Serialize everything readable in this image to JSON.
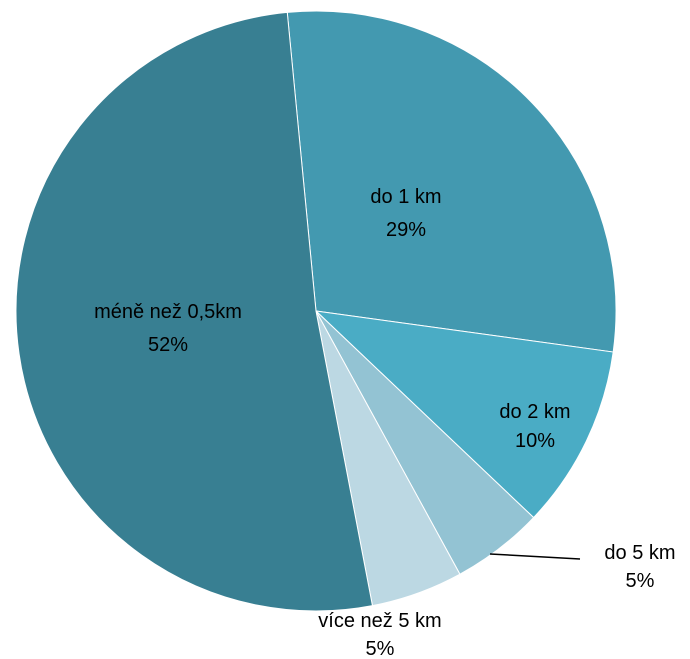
{
  "chart_data": {
    "type": "pie",
    "title": "",
    "legend": "none",
    "slices": [
      {
        "label": "do 1 km",
        "value": 29,
        "value_label": "29%",
        "color": "#4399B0"
      },
      {
        "label": "do 2 km",
        "value": 10,
        "value_label": "10%",
        "color": "#4AACC5"
      },
      {
        "label": "do 5 km",
        "value": 5,
        "value_label": "5%",
        "color": "#93C3D3"
      },
      {
        "label": "více než 5 km",
        "value": 5,
        "value_label": "5%",
        "color": "#BCD8E3"
      },
      {
        "label": "méně než 0,5km",
        "value": 52,
        "value_label": "52%",
        "color": "#387F92"
      }
    ]
  }
}
